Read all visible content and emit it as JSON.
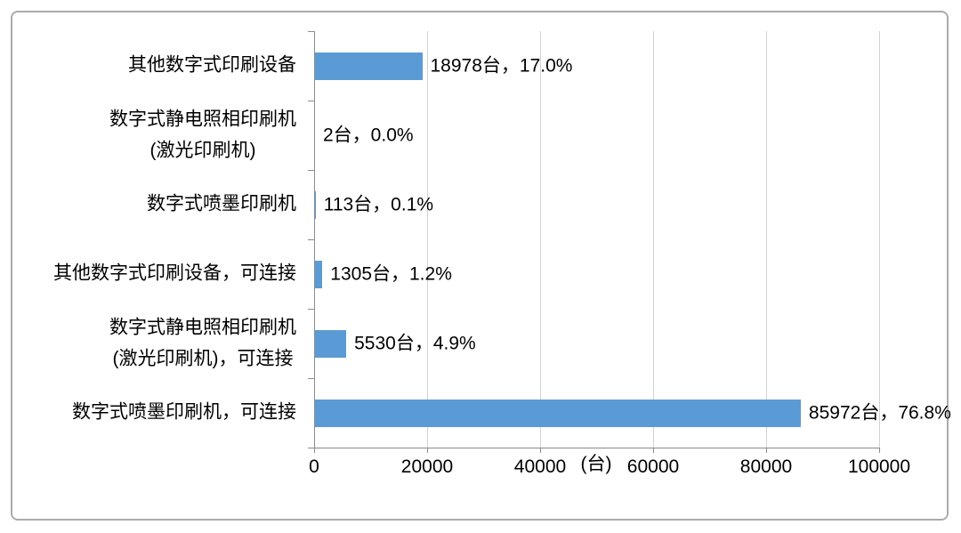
{
  "chart_data": {
    "type": "bar",
    "orientation": "horizontal",
    "title": "",
    "xlabel": "(台)",
    "ylabel": "",
    "xlim": [
      0,
      100000
    ],
    "x_ticks": [
      0,
      20000,
      40000,
      60000,
      80000,
      100000
    ],
    "x_tick_labels": [
      "0",
      "20000",
      "40000",
      "60000",
      "80000",
      "100000"
    ],
    "grid": true,
    "legend": false,
    "bar_color": "#5B9BD5",
    "categories": [
      "其他数字式印刷设备",
      "数字式静电照相印刷机 (激光印刷机)",
      "数字式喷墨印刷机",
      "其他数字式印刷设备，可连接",
      "数字式静电照相印刷机 (激光印刷机)，可连接",
      "数字式喷墨印刷机，可连接"
    ],
    "values": [
      18978,
      2,
      113,
      1305,
      5530,
      85972
    ],
    "percents": [
      17.0,
      0.0,
      0.1,
      1.2,
      4.9,
      76.8
    ],
    "rows": [
      {
        "category_lines": [
          "其他数字式印刷设备"
        ],
        "value": 18978,
        "percent": 17.0,
        "label": "18978台，17.0%"
      },
      {
        "category_lines": [
          "数字式静电照相印刷机",
          "(激光印刷机)"
        ],
        "value": 2,
        "percent": 0.0,
        "label": "2台，0.0%"
      },
      {
        "category_lines": [
          "数字式喷墨印刷机"
        ],
        "value": 113,
        "percent": 0.1,
        "label": "113台，0.1%"
      },
      {
        "category_lines": [
          "其他数字式印刷设备，可连接"
        ],
        "value": 1305,
        "percent": 1.2,
        "label": "1305台，1.2%"
      },
      {
        "category_lines": [
          "数字式静电照相印刷机",
          "(激光印刷机)，可连接"
        ],
        "value": 5530,
        "percent": 4.9,
        "label": "5530台，4.9%"
      },
      {
        "category_lines": [
          "数字式喷墨印刷机，可连接"
        ],
        "value": 85972,
        "percent": 76.8,
        "label": "85972台，76.8%"
      }
    ]
  },
  "colors": {
    "bar": "#5B9BD5",
    "grid": "#D2D2D2",
    "axis": "#8C8C8C",
    "border": "#ABABAB",
    "text": "#000000"
  }
}
